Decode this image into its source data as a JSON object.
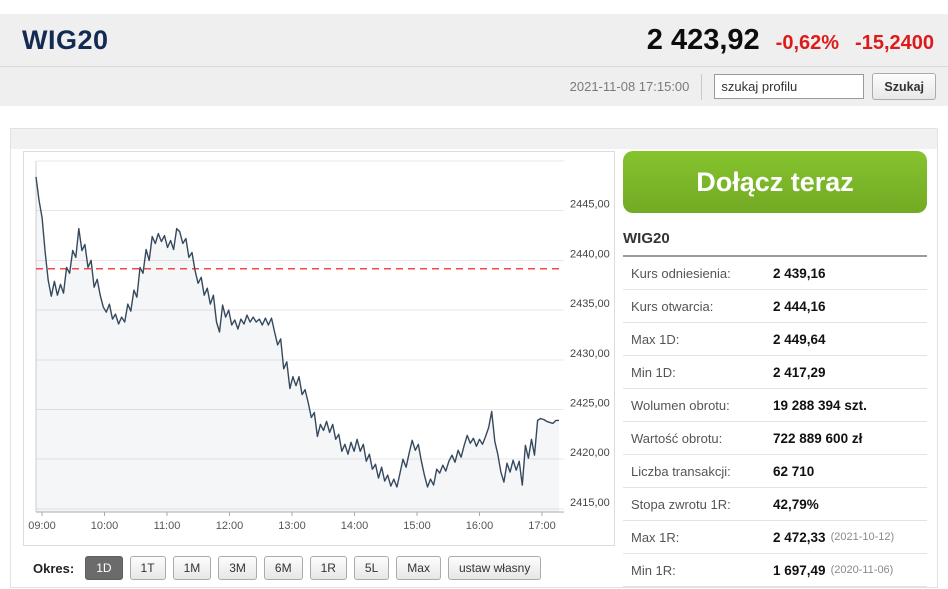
{
  "header": {
    "title": "WIG20",
    "price": "2 423,92",
    "change_percent": "-0,62%",
    "change_value": "-15,2400",
    "timestamp": "2021-11-08 17:15:00",
    "search_placeholder": "szukaj profilu",
    "search_button": "Szukaj"
  },
  "cta": {
    "label": "Dołącz teraz"
  },
  "period_bar": {
    "label": "Okres:",
    "options": [
      "1D",
      "1T",
      "1M",
      "3M",
      "6M",
      "1R",
      "5L",
      "Max",
      "ustaw własny"
    ],
    "selected": "1D"
  },
  "stats": {
    "heading": "WIG20",
    "rows": [
      {
        "label": "Kurs odniesienia:",
        "value": "2 439,16",
        "note": ""
      },
      {
        "label": "Kurs otwarcia:",
        "value": "2 444,16",
        "note": ""
      },
      {
        "label": "Max 1D:",
        "value": "2 449,64",
        "note": ""
      },
      {
        "label": "Min 1D:",
        "value": "2 417,29",
        "note": ""
      },
      {
        "label": "Wolumen obrotu:",
        "value": "19 288 394 szt.",
        "note": ""
      },
      {
        "label": "Wartość obrotu:",
        "value": "722 889 600 zł",
        "note": ""
      },
      {
        "label": "Liczba transakcji:",
        "value": "62 710",
        "note": ""
      },
      {
        "label": "Stopa zwrotu 1R:",
        "value": "42,79%",
        "note": ""
      },
      {
        "label": "Max 1R:",
        "value": "2 472,33",
        "note": "(2021-10-12)"
      },
      {
        "label": "Min 1R:",
        "value": "1 697,49",
        "note": "(2020-11-06)"
      }
    ]
  },
  "colors": {
    "negative_red": "#dd1b1b",
    "title_navy": "#132a53",
    "cta_green_top": "#85c32e",
    "cta_green_bottom": "#73aa24",
    "chart_line": "#35495e",
    "chart_fill_opacity": "0.05",
    "reference_red": "#ef4b4b",
    "grid_gray": "#e7e7e7",
    "axis_gray": "#aaaaaa"
  },
  "chart_data": {
    "type": "area",
    "title": "WIG20 intraday 1D",
    "xlabel": "",
    "ylabel": "",
    "x_start": "09:00",
    "x_end": "17:15",
    "x_ticks": [
      "09:00",
      "10:00",
      "11:00",
      "12:00",
      "13:00",
      "14:00",
      "15:00",
      "16:00",
      "17:00"
    ],
    "y_grid_values": [
      2450,
      2445,
      2440,
      2435,
      2430,
      2425,
      2420,
      2415
    ],
    "y_tick_labels": [
      "2445,00",
      "2440,00",
      "2435,00",
      "2430,00",
      "2425,00",
      "2420,00",
      "2415,00"
    ],
    "y_tick_values": [
      2445,
      2440,
      2435,
      2430,
      2425,
      2420,
      2415
    ],
    "ylim": [
      2414.69,
      2450.0
    ],
    "grid": true,
    "legend": false,
    "reference_line": 2439.16,
    "series": [
      {
        "name": "WIG20",
        "values": [
          2448.4,
          2446.0,
          2444.3,
          2440.8,
          2438.0,
          2436.4,
          2437.9,
          2436.5,
          2437.6,
          2436.7,
          2439.3,
          2438.7,
          2441.0,
          2440.3,
          2443.2,
          2441.0,
          2441.6,
          2439.3,
          2440.0,
          2437.3,
          2438.1,
          2436.5,
          2435.3,
          2434.8,
          2435.6,
          2434.1,
          2434.6,
          2433.6,
          2434.3,
          2433.8,
          2435.6,
          2434.9,
          2437.0,
          2436.3,
          2439.3,
          2438.7,
          2441.1,
          2440.0,
          2442.4,
          2441.7,
          2442.7,
          2441.9,
          2442.5,
          2441.3,
          2442.0,
          2441.1,
          2443.2,
          2442.9,
          2441.7,
          2442.2,
          2440.3,
          2440.8,
          2439.0,
          2437.7,
          2438.3,
          2436.5,
          2437.2,
          2435.6,
          2436.5,
          2433.8,
          2432.8,
          2435.5,
          2434.3,
          2435.0,
          2433.5,
          2434.0,
          2433.1,
          2434.1,
          2433.6,
          2434.5,
          2433.8,
          2434.3,
          2433.8,
          2434.1,
          2433.5,
          2434.2,
          2433.5,
          2434.2,
          2432.8,
          2431.5,
          2432.1,
          2429.1,
          2429.8,
          2427.1,
          2428.3,
          2427.4,
          2428.3,
          2426.5,
          2427.0,
          2425.7,
          2424.2,
          2424.7,
          2422.3,
          2423.5,
          2422.9,
          2423.8,
          2422.7,
          2423.5,
          2422.0,
          2422.5,
          2420.8,
          2421.5,
          2420.5,
          2421.7,
          2420.8,
          2422.0,
          2420.8,
          2421.5,
          2419.8,
          2420.5,
          2419.0,
          2419.5,
          2418.1,
          2419.2,
          2417.8,
          2418.4,
          2417.3,
          2418.0,
          2417.2,
          2418.6,
          2420.0,
          2419.2,
          2420.6,
          2421.9,
          2420.9,
          2421.5,
          2419.8,
          2418.4,
          2417.2,
          2418.0,
          2417.4,
          2419.0,
          2418.6,
          2419.4,
          2418.8,
          2419.8,
          2420.4,
          2419.7,
          2420.9,
          2420.2,
          2421.4,
          2422.4,
          2421.6,
          2422.1,
          2421.3,
          2422.0,
          2421.5,
          2422.3,
          2423.2,
          2424.8,
          2421.8,
          2420.5,
          2418.7,
          2417.7,
          2419.6,
          2418.7,
          2419.9,
          2418.9,
          2419.8,
          2417.4,
          2421.4,
          2420.1,
          2422.0,
          2420.4,
          2423.9,
          2424.1,
          2424.0,
          2423.8,
          2423.7,
          2423.6,
          2423.9,
          2423.9
        ]
      }
    ]
  }
}
